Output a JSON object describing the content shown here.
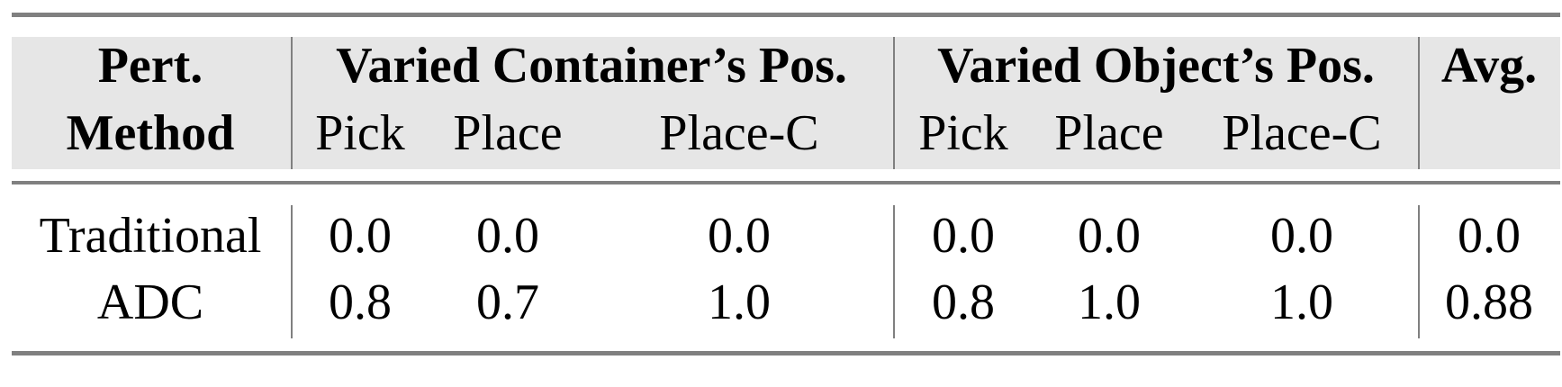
{
  "header": {
    "row1": {
      "method": "Pert.",
      "group1": "Varied Container’s Pos.",
      "group2": "Varied Object’s Pos.",
      "avg": "Avg."
    },
    "row2": {
      "method": "Method",
      "cols": [
        "Pick",
        "Place",
        "Place-C",
        "Pick",
        "Place",
        "Place-C"
      ]
    }
  },
  "rows": [
    {
      "method": "Traditional",
      "values": [
        "0.0",
        "0.0",
        "0.0",
        "0.0",
        "0.0",
        "0.0"
      ],
      "avg": "0.0"
    },
    {
      "method": "ADC",
      "values": [
        "0.8",
        "0.7",
        "1.0",
        "0.8",
        "1.0",
        "1.0"
      ],
      "avg": "0.88"
    }
  ],
  "colors": {
    "header_bg": "#e6e6e6",
    "rule": "#808080"
  }
}
